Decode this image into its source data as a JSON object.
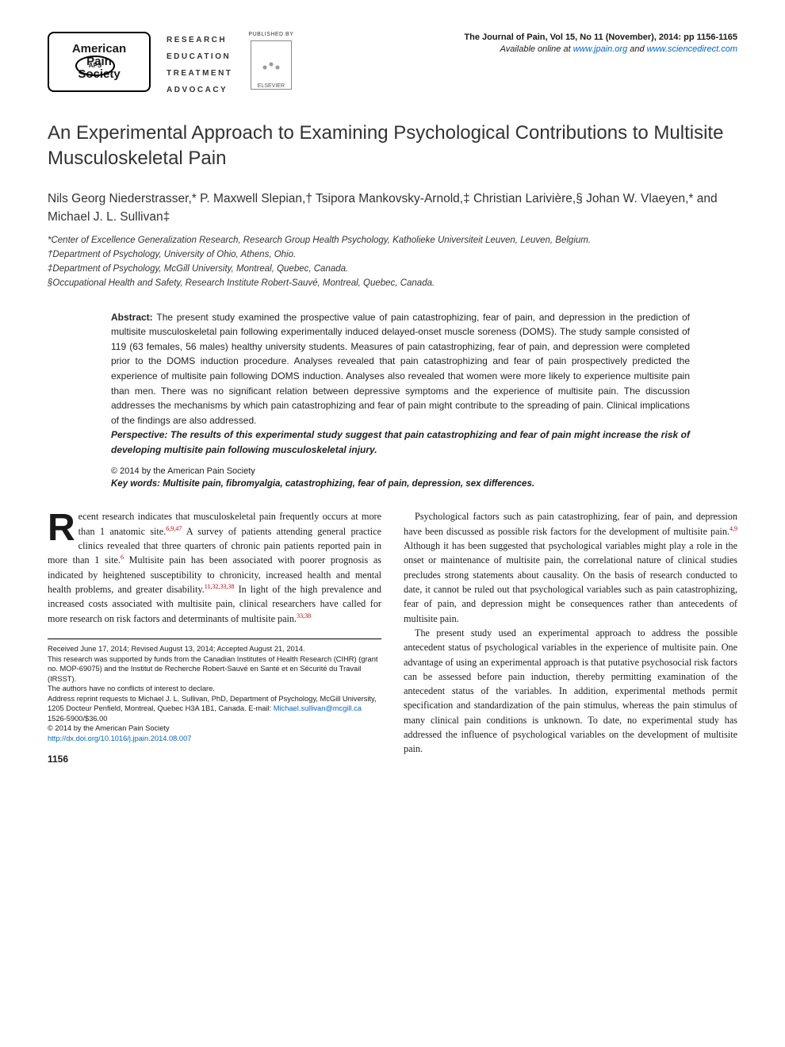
{
  "header": {
    "aps_logo_lines": [
      "American",
      "Pain",
      "Society"
    ],
    "aps_oval": "APS",
    "reta": [
      "RESEARCH",
      "EDUCATION",
      "TREATMENT",
      "ADVOCACY"
    ],
    "published_by": "PUBLISHED BY",
    "elsevier": "ELSEVIER",
    "journal_line": "The Journal of Pain, Vol 15, No 11 (November), 2014: pp 1156-1165",
    "avail_prefix": "Available online at ",
    "link1": "www.jpain.org",
    "avail_mid": " and ",
    "link2": "www.sciencedirect.com"
  },
  "title": "An Experimental Approach to Examining Psychological Contributions to Multisite Musculoskeletal Pain",
  "authors": "Nils Georg Niederstrasser,* P. Maxwell Slepian,† Tsipora Mankovsky-Arnold,‡ Christian Larivière,§ Johan W. Vlaeyen,* and Michael J. L. Sullivan‡",
  "affiliations": [
    "*Center of Excellence Generalization Research, Research Group Health Psychology, Katholieke Universiteit Leuven, Leuven, Belgium.",
    "†Department of Psychology, University of Ohio, Athens, Ohio.",
    "‡Department of Psychology, McGill University, Montreal, Quebec, Canada.",
    "§Occupational Health and Safety, Research Institute Robert-Sauvé, Montreal, Quebec, Canada."
  ],
  "abstract": {
    "lead": "Abstract: ",
    "body": "The present study examined the prospective value of pain catastrophizing, fear of pain, and depression in the prediction of multisite musculoskeletal pain following experimentally induced delayed-onset muscle soreness (DOMS). The study sample consisted of 119 (63 females, 56 males) healthy university students. Measures of pain catastrophizing, fear of pain, and depression were completed prior to the DOMS induction procedure. Analyses revealed that pain catastrophizing and fear of pain prospectively predicted the experience of multisite pain following DOMS induction. Analyses also revealed that women were more likely to experience multisite pain than men. There was no significant relation between depressive symptoms and the experience of multisite pain. The discussion addresses the mechanisms by which pain catastrophizing and fear of pain might contribute to the spreading of pain. Clinical implications of the findings are also addressed.",
    "persp_lead": "Perspective: ",
    "persp_body": "The results of this experimental study suggest that pain catastrophizing and fear of pain might increase the risk of developing multisite pain following musculoskeletal injury."
  },
  "copyright": "© 2014 by the American Pain Society",
  "keywords_lead": "Key words: ",
  "keywords": "Multisite pain, fibromyalgia, catastrophizing, fear of pain, depression, sex differences.",
  "body": {
    "col1": {
      "dropcap": "R",
      "p1a": "ecent research indicates that musculoskeletal pain frequently occurs at more than 1 anatomic site.",
      "p1_ref1": "6,9,47",
      "p1b": " A survey of patients attending general practice clinics revealed that three quarters of chronic pain patients reported pain in more than 1 site.",
      "p1_ref2": "6",
      "p1c": " Multisite pain has been associated with poorer prognosis as indicated by heightened susceptibility to chronicity, increased health and mental health problems, and greater disability.",
      "p1_ref3": "11,32,33,38",
      "p1d": " In light of the high prevalence and increased costs associated with multisite pain, clinical researchers have called for more research on risk factors and determinants of multisite pain.",
      "p1_ref4": "33,38"
    },
    "col2": {
      "p1a": "Psychological factors such as pain catastrophizing, fear of pain, and depression have been discussed as possible risk factors for the development of multisite pain.",
      "p1_ref1": "4,9",
      "p1b": " Although it has been suggested that psychological variables might play a role in the onset or maintenance of multisite pain, the correlational nature of clinical studies precludes strong statements about causality. On the basis of research conducted to date, it cannot be ruled out that psychological variables such as pain catastrophizing, fear of pain, and depression might be consequences rather than antecedents of multisite pain.",
      "p2": "The present study used an experimental approach to address the possible antecedent status of psychological variables in the experience of multisite pain. One advantage of using an experimental approach is that putative psychosocial risk factors can be assessed before pain induction, thereby permitting examination of the antecedent status of the variables. In addition, experimental methods permit specification and standardization of the pain stimulus, whereas the pain stimulus of many clinical pain conditions is unknown. To date, no experimental study has addressed the influence of psychological variables on the development of multisite pain."
    }
  },
  "footnotes": {
    "received": "Received June 17, 2014; Revised August 13, 2014; Accepted August 21, 2014.",
    "funding": "This research was supported by funds from the Canadian Institutes of Health Research (CIHR) (grant no. MOP-69075) and the Institut de Recherche Robert-Sauvé en Santé et en Sécurité du Travail (IRSST).",
    "conflicts": "The authors have no conflicts of interest to declare.",
    "reprint": "Address reprint requests to Michael J. L. Sullivan, PhD, Department of Psychology, McGill University, 1205 Docteur Penfield, Montreal, Quebec H3A 1B1, Canada. E-mail: ",
    "email": "Michael.sullivan@mcgill.ca",
    "issn": "1526-5900/$36.00",
    "copyright": "© 2014 by the American Pain Society",
    "doi": "http://dx.doi.org/10.1016/j.jpain.2014.08.007"
  },
  "page_number": "1156"
}
